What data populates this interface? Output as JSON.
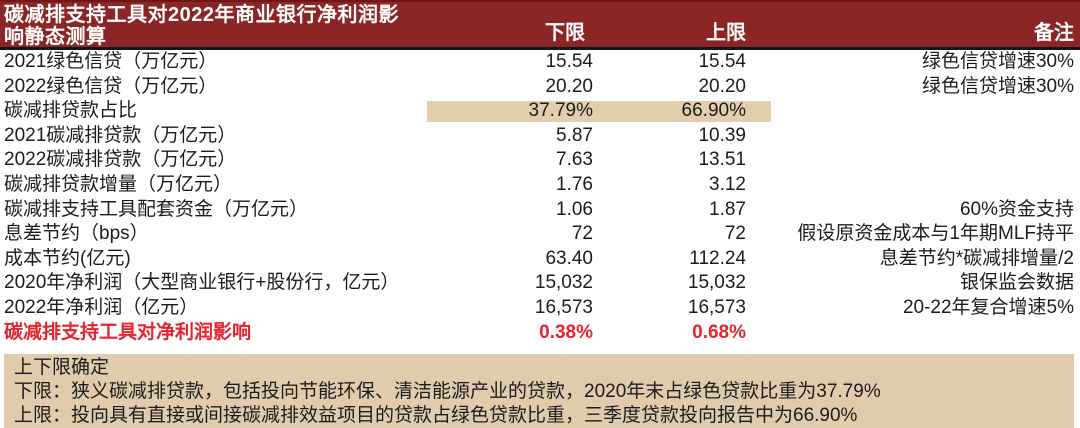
{
  "header": {
    "title_lines": [
      "碳减排支持工具对2022年商业银行净利润影",
      "响静态测算"
    ]
  },
  "chart_data": {
    "type": "table",
    "title": "碳减排支持工具对2022年商业银行净利润影响静态测算",
    "columns": {
      "label": "",
      "lower": "下限",
      "upper": "上限",
      "note": "备注"
    },
    "rows": [
      {
        "label": "2021绿色信贷（万亿元）",
        "lower": "15.54",
        "upper": "15.54",
        "note": "绿色信贷增速30%",
        "highlight": false,
        "emphasis": false
      },
      {
        "label": "2022绿色信贷（万亿元）",
        "lower": "20.20",
        "upper": "20.20",
        "note": "绿色信贷增速30%",
        "highlight": false,
        "emphasis": false
      },
      {
        "label": "碳减排贷款占比",
        "lower": "37.79%",
        "upper": "66.90%",
        "note": "",
        "highlight": true,
        "emphasis": false
      },
      {
        "label": "2021碳减排贷款（万亿元）",
        "lower": "5.87",
        "upper": "10.39",
        "note": "",
        "highlight": false,
        "emphasis": false
      },
      {
        "label": "2022碳减排贷款（万亿元）",
        "lower": "7.63",
        "upper": "13.51",
        "note": "",
        "highlight": false,
        "emphasis": false
      },
      {
        "label": "碳减排贷款增量（万亿元）",
        "lower": "1.76",
        "upper": "3.12",
        "note": "",
        "highlight": false,
        "emphasis": false
      },
      {
        "label": "碳减排支持工具配套资金（万亿元）",
        "lower": "1.06",
        "upper": "1.87",
        "note": "60%资金支持",
        "highlight": false,
        "emphasis": false
      },
      {
        "label": "息差节约（bps）",
        "lower": "72",
        "upper": "72",
        "note": "假设原资金成本与1年期MLF持平",
        "highlight": false,
        "emphasis": false
      },
      {
        "label": "成本节约(亿元)",
        "lower": "63.40",
        "upper": "112.24",
        "note": "息差节约*碳减排增量/2",
        "highlight": false,
        "emphasis": false
      },
      {
        "label": "2020年净利润（大型商业银行+股份行，亿元）",
        "lower": "15,032",
        "upper": "15,032",
        "note": "银保监会数据",
        "highlight": false,
        "emphasis": false
      },
      {
        "label": "2022年净利润（亿元）",
        "lower": "16,573",
        "upper": "16,573",
        "note": "20-22年复合增速5%",
        "highlight": false,
        "emphasis": false
      },
      {
        "label": "碳减排支持工具对净利润影响",
        "lower": "0.38%",
        "upper": "0.68%",
        "note": "",
        "highlight": false,
        "emphasis": true
      }
    ],
    "footnote": {
      "heading": "上下限确定",
      "lines": [
        "下限：狭义碳减排贷款，包括投向节能环保、清洁能源产业的贷款，2020年末占绿色贷款比重为37.79%",
        "上限：投向具有直接或间接碳减排效益项目的贷款占绿色贷款比重，三季度贷款投向报告中为66.90%"
      ]
    }
  },
  "colors": {
    "header_bg": "#8C2626",
    "header_top_edge": "#6D1717",
    "header_text": "#FFFFFF",
    "divider": "#151515",
    "body_text": "#1C1C1C",
    "highlight_bg": "#E2CDAC",
    "footnote_bg": "#E0CCAC",
    "emphasis_red": "#E8232B"
  }
}
